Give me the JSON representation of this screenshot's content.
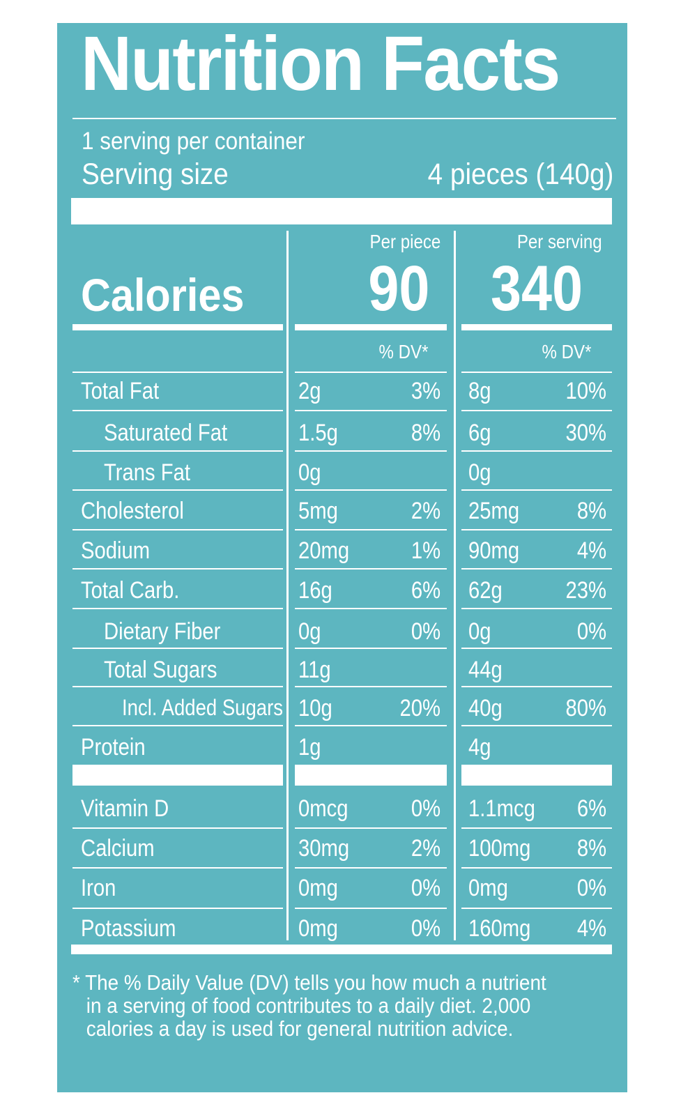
{
  "title": "Nutrition Facts",
  "servings_per_container": "1 serving per container",
  "serving_size_label": "Serving size",
  "serving_size_value": "4 pieces (140g)",
  "calories_label": "Calories",
  "columns": [
    {
      "header": "Per piece",
      "calories": "90",
      "dv_header": "% DV*"
    },
    {
      "header": "Per serving",
      "calories": "340",
      "dv_header": "% DV*"
    }
  ],
  "nutrients": [
    {
      "name": "Total Fat",
      "indent": 0,
      "piece_amt": "2g",
      "piece_dv": "3%",
      "serv_amt": "8g",
      "serv_dv": "10%"
    },
    {
      "name": "Saturated Fat",
      "indent": 1,
      "piece_amt": "1.5g",
      "piece_dv": "8%",
      "serv_amt": "6g",
      "serv_dv": "30%"
    },
    {
      "name": "Trans Fat",
      "indent": 1,
      "piece_amt": "0g",
      "piece_dv": "",
      "serv_amt": "0g",
      "serv_dv": ""
    },
    {
      "name": "Cholesterol",
      "indent": 0,
      "piece_amt": "5mg",
      "piece_dv": "2%",
      "serv_amt": "25mg",
      "serv_dv": "8%"
    },
    {
      "name": "Sodium",
      "indent": 0,
      "piece_amt": "20mg",
      "piece_dv": "1%",
      "serv_amt": "90mg",
      "serv_dv": "4%"
    },
    {
      "name": "Total Carb.",
      "indent": 0,
      "piece_amt": "16g",
      "piece_dv": "6%",
      "serv_amt": "62g",
      "serv_dv": "23%"
    },
    {
      "name": "Dietary Fiber",
      "indent": 1,
      "piece_amt": "0g",
      "piece_dv": "0%",
      "serv_amt": "0g",
      "serv_dv": "0%"
    },
    {
      "name": "Total Sugars",
      "indent": 1,
      "piece_amt": "11g",
      "piece_dv": "",
      "serv_amt": "44g",
      "serv_dv": ""
    },
    {
      "name": "Incl. Added Sugars",
      "indent": 2,
      "piece_amt": "10g",
      "piece_dv": "20%",
      "serv_amt": "40g",
      "serv_dv": "80%"
    },
    {
      "name": "Protein",
      "indent": 0,
      "piece_amt": "1g",
      "piece_dv": "",
      "serv_amt": "4g",
      "serv_dv": ""
    }
  ],
  "vitamins": [
    {
      "name": "Vitamin D",
      "piece_amt": "0mcg",
      "piece_dv": "0%",
      "serv_amt": "1.1mcg",
      "serv_dv": "6%"
    },
    {
      "name": "Calcium",
      "piece_amt": "30mg",
      "piece_dv": "2%",
      "serv_amt": "100mg",
      "serv_dv": "8%"
    },
    {
      "name": "Iron",
      "piece_amt": "0mg",
      "piece_dv": "0%",
      "serv_amt": "0mg",
      "serv_dv": "0%"
    },
    {
      "name": "Potassium",
      "piece_amt": "0mg",
      "piece_dv": "0%",
      "serv_amt": "160mg",
      "serv_dv": "4%"
    }
  ],
  "footnote": [
    "* The % Daily Value (DV) tells you how much a nutrient",
    "in a serving of food contributes to a daily diet. 2,000",
    "calories a day is used for general nutrition advice."
  ],
  "colors": {
    "label_background": "#5db6c0",
    "text": "#ffffff"
  }
}
